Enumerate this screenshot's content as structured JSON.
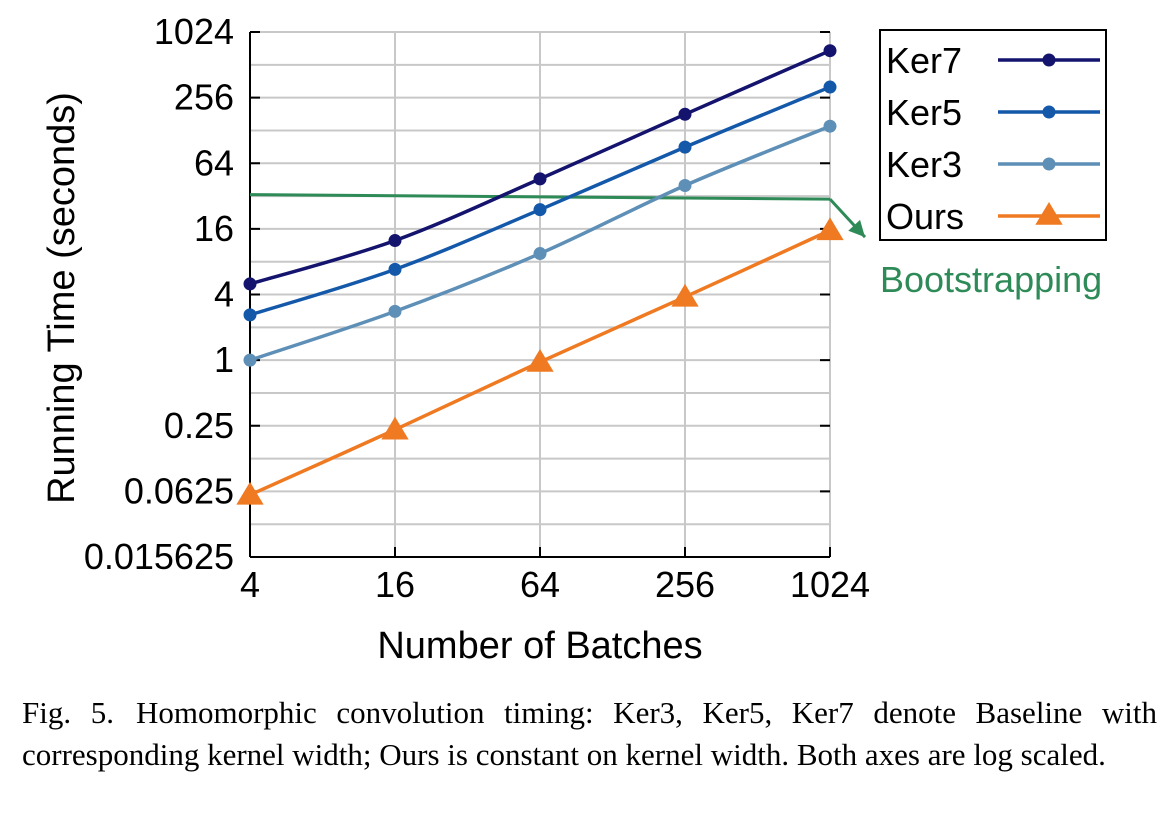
{
  "chart_data": {
    "type": "line",
    "xlabel": "Number of Batches",
    "ylabel": "Running Time (seconds)",
    "x_scale": "log2",
    "y_scale": "log2",
    "x": [
      4,
      16,
      64,
      256,
      1024
    ],
    "x_tick_labels": [
      "4",
      "16",
      "64",
      "256",
      "1024"
    ],
    "y_tick_values": [
      0.015625,
      0.0625,
      0.25,
      1,
      4,
      16,
      64,
      256,
      1024
    ],
    "y_tick_labels": [
      "0.015625",
      "0.0625",
      "0.25",
      "1",
      "4",
      "16",
      "64",
      "256",
      "1024"
    ],
    "xlim": [
      4,
      1024
    ],
    "ylim": [
      0.015625,
      1024
    ],
    "grid": true,
    "legend_position": "top-right, outside plot",
    "series": [
      {
        "name": "Ker7",
        "color": "#14146e",
        "marker": "circle",
        "values": [
          5,
          12.5,
          46,
          180,
          690
        ]
      },
      {
        "name": "Ker5",
        "color": "#1458aa",
        "marker": "circle",
        "values": [
          2.6,
          6.8,
          24,
          90,
          320
        ]
      },
      {
        "name": "Ker3",
        "color": "#5e8fb7",
        "marker": "circle",
        "values": [
          1,
          2.8,
          9.5,
          40,
          140
        ]
      },
      {
        "name": "Ours",
        "color": "#ef7a22",
        "marker": "triangle",
        "values": [
          0.058,
          0.23,
          0.96,
          3.8,
          15.5
        ]
      }
    ],
    "reference_line": {
      "label": "Bootstrapping",
      "color": "#2e8a57",
      "values": [
        33,
        30
      ]
    },
    "annotation": "Bootstrapping"
  },
  "caption": {
    "label": "Fig. 5.",
    "text": "Homomorphic convolution timing: Ker3, Ker5, Ker7 denote Baseline with corresponding kernel width; Ours is constant on kernel width. Both axes are log scaled."
  }
}
